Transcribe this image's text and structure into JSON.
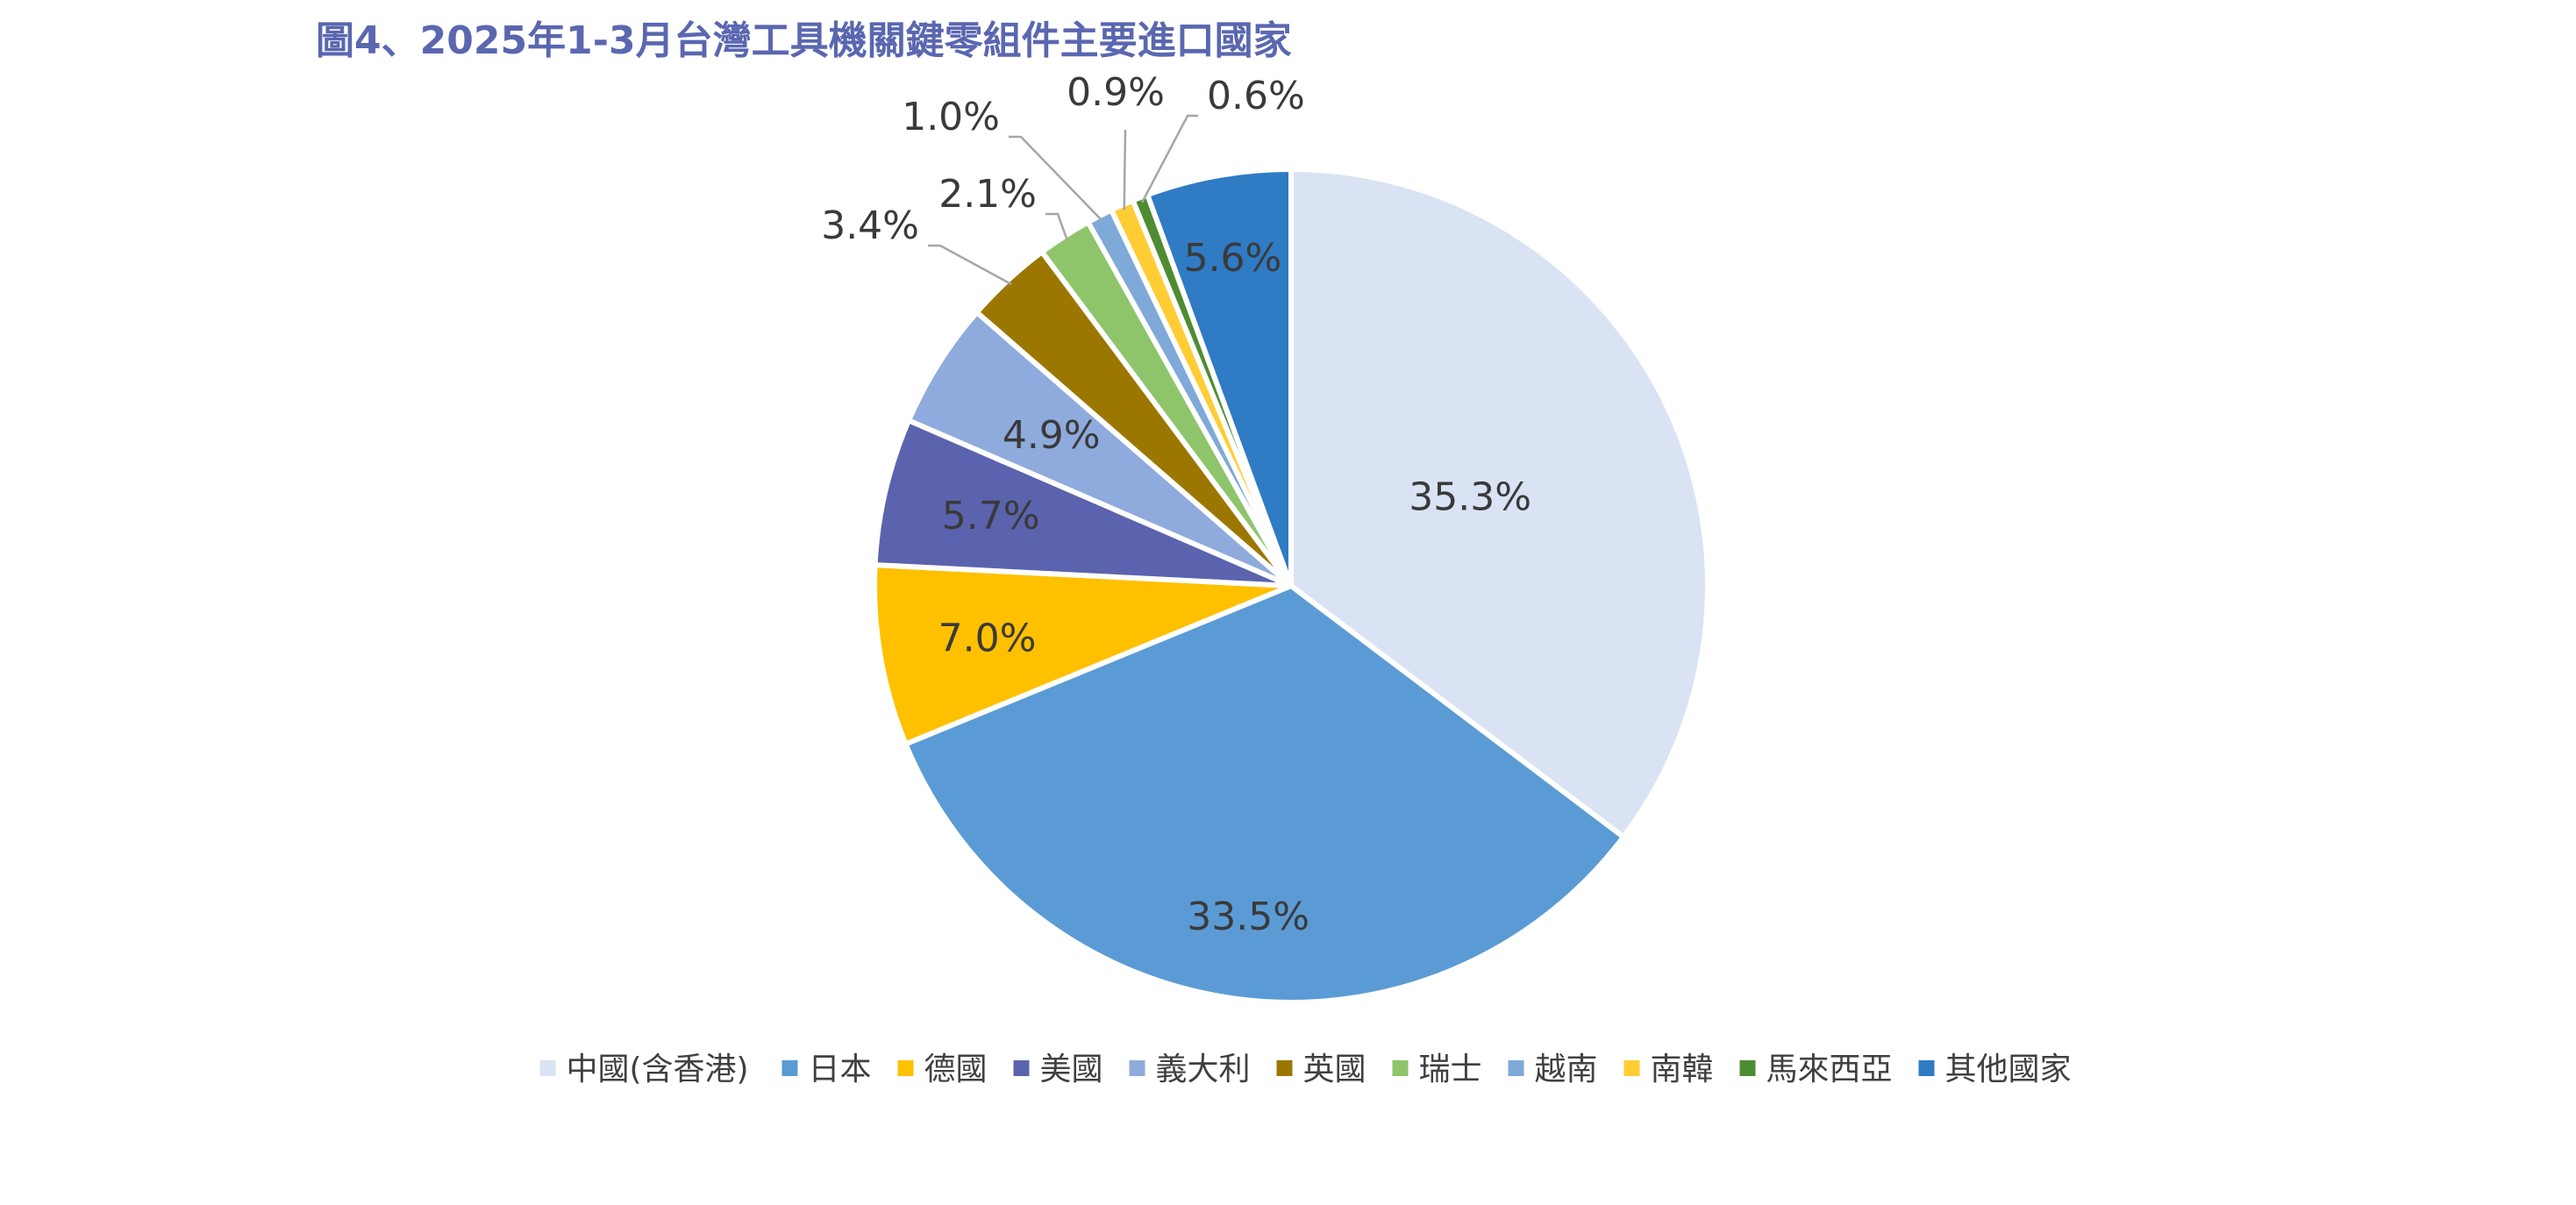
{
  "chart_data": {
    "type": "pie",
    "title": "圖4、2025年1-3月台灣工具機關鍵零組件主要進口國家",
    "legend_position": "bottom",
    "slices": [
      {
        "name": "中國(含香港)",
        "value": 35.3,
        "label": "35.3%",
        "color": "#dae3f3"
      },
      {
        "name": "日本",
        "value": 33.5,
        "label": "33.5%",
        "color": "#5b9bd5"
      },
      {
        "name": "德國",
        "value": 7.0,
        "label": "7.0%",
        "color": "#ffc000"
      },
      {
        "name": "美國",
        "value": 5.7,
        "label": "5.7%",
        "color": "#5b63ae"
      },
      {
        "name": "義大利",
        "value": 4.9,
        "label": "4.9%",
        "color": "#8faadc"
      },
      {
        "name": "英國",
        "value": 3.4,
        "label": "3.4%",
        "color": "#9c7700"
      },
      {
        "name": "瑞士",
        "value": 2.1,
        "label": "2.1%",
        "color": "#8ec56b"
      },
      {
        "name": "越南",
        "value": 1.0,
        "label": "1.0%",
        "color": "#7fa9d9"
      },
      {
        "name": "南韓",
        "value": 0.9,
        "label": "0.9%",
        "color": "#ffcd33"
      },
      {
        "name": "馬來西亞",
        "value": 0.6,
        "label": "0.6%",
        "color": "#4e8c32"
      },
      {
        "name": "其他國家",
        "value": 5.6,
        "label": "5.6%",
        "color": "#2f7bc4"
      }
    ]
  }
}
